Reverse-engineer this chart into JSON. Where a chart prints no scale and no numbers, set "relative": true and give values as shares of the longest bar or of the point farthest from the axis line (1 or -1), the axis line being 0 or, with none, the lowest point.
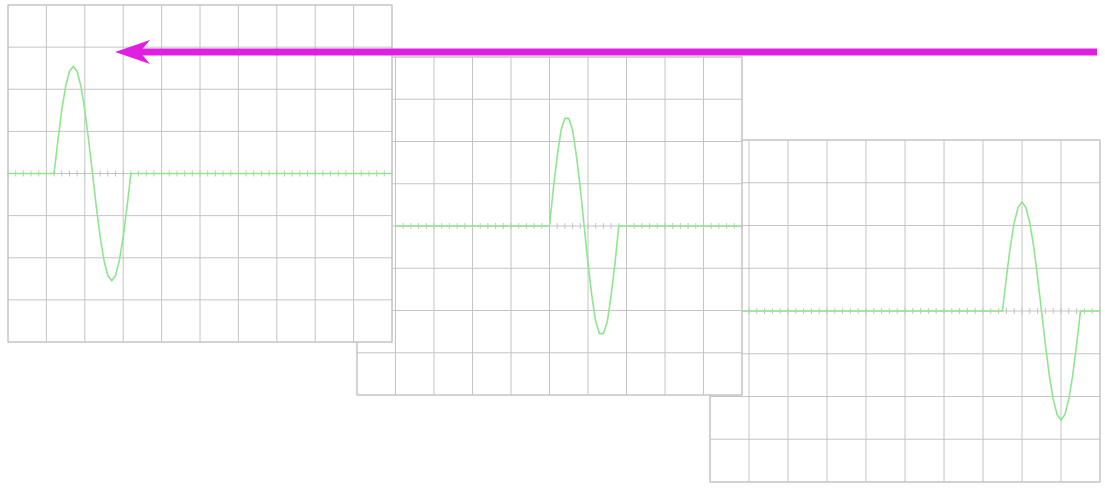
{
  "chart_data": [
    {
      "type": "line",
      "relative": true,
      "grid": true,
      "categories": [
        null,
        null,
        null,
        null,
        null,
        null,
        null,
        null,
        null,
        null,
        null,
        null,
        null,
        null,
        null,
        null,
        null,
        null,
        null,
        null,
        null,
        null,
        null,
        null,
        null,
        null,
        null,
        null,
        null,
        null,
        null,
        null,
        null,
        null,
        null,
        null,
        null,
        null,
        null,
        null,
        null,
        null,
        null,
        null,
        null,
        null,
        null,
        null,
        null,
        null,
        null,
        null,
        null,
        null,
        null,
        null,
        null,
        null,
        null,
        null,
        null,
        null,
        null,
        null,
        null,
        null,
        null,
        null,
        null,
        null,
        null,
        null,
        null,
        null,
        null,
        null,
        null,
        null,
        null,
        null,
        null,
        null,
        null,
        null,
        null,
        null,
        null,
        null,
        null,
        null,
        null,
        null,
        null,
        null,
        null,
        null,
        null,
        null,
        null,
        null,
        null
      ],
      "series": [
        {
          "color": "#8ee68e",
          "values": [
            0,
            0,
            0,
            0,
            0,
            0,
            0,
            0,
            0,
            0,
            0,
            0,
            0,
            0.31,
            0.59,
            0.81,
            0.95,
            1,
            0.95,
            0.81,
            0.59,
            0.31,
            0,
            -0.31,
            -0.59,
            -0.81,
            -0.95,
            -1,
            -0.95,
            -0.81,
            -0.59,
            -0.31,
            0,
            0,
            0,
            0,
            0,
            0,
            0,
            0,
            0,
            0,
            0,
            0,
            0,
            0,
            0,
            0,
            0,
            0,
            0,
            0,
            0,
            0,
            0,
            0,
            0,
            0,
            0,
            0,
            0,
            0,
            0,
            0,
            0,
            0,
            0,
            0,
            0,
            0,
            0,
            0,
            0,
            0,
            0,
            0,
            0,
            0,
            0,
            0,
            0,
            0,
            0,
            0,
            0,
            0,
            0,
            0,
            0,
            0,
            0,
            0,
            0,
            0,
            0,
            0,
            0,
            0,
            0,
            0,
            0
          ]
        }
      ]
    },
    {
      "type": "line",
      "relative": true,
      "grid": true,
      "categories": [
        null,
        null,
        null,
        null,
        null,
        null,
        null,
        null,
        null,
        null,
        null,
        null,
        null,
        null,
        null,
        null,
        null,
        null,
        null,
        null,
        null,
        null,
        null,
        null,
        null,
        null,
        null,
        null,
        null,
        null,
        null,
        null,
        null,
        null,
        null,
        null,
        null,
        null,
        null,
        null,
        null,
        null,
        null,
        null,
        null,
        null,
        null,
        null,
        null,
        null,
        null,
        null,
        null,
        null,
        null,
        null,
        null,
        null,
        null,
        null,
        null,
        null,
        null,
        null,
        null,
        null,
        null,
        null,
        null,
        null,
        null,
        null,
        null,
        null,
        null,
        null,
        null,
        null,
        null,
        null,
        null,
        null,
        null,
        null,
        null,
        null,
        null,
        null,
        null,
        null,
        null,
        null,
        null,
        null,
        null,
        null,
        null,
        null,
        null,
        null,
        null
      ],
      "series": [
        {
          "color": "#8ee68e",
          "values": [
            null,
            null,
            null,
            null,
            null,
            null,
            null,
            null,
            null,
            null,
            0,
            0,
            0,
            0,
            0,
            0,
            0,
            0,
            0,
            0,
            0,
            0,
            0,
            0,
            0,
            0,
            0,
            0,
            0,
            0,
            0,
            0,
            0,
            0,
            0,
            0,
            0,
            0,
            0,
            0,
            0,
            0,
            0,
            0,
            0,
            0,
            0,
            0,
            0,
            0,
            0,
            0.35,
            0.65,
            0.89,
            1,
            1,
            0.89,
            0.65,
            0.35,
            0,
            -0.35,
            -0.65,
            -0.89,
            -1,
            -1,
            -0.89,
            -0.65,
            -0.35,
            0,
            0,
            0,
            0,
            0,
            0,
            0,
            0,
            0,
            0,
            0,
            0,
            0,
            0,
            0,
            0,
            0,
            0,
            0,
            0,
            0,
            0,
            0,
            0,
            0,
            0,
            0,
            0,
            0,
            0,
            0,
            0,
            0
          ]
        }
      ]
    },
    {
      "type": "line",
      "relative": true,
      "grid": true,
      "categories": [
        null,
        null,
        null,
        null,
        null,
        null,
        null,
        null,
        null,
        null,
        null,
        null,
        null,
        null,
        null,
        null,
        null,
        null,
        null,
        null,
        null,
        null,
        null,
        null,
        null,
        null,
        null,
        null,
        null,
        null,
        null,
        null,
        null,
        null,
        null,
        null,
        null,
        null,
        null,
        null,
        null,
        null,
        null,
        null,
        null,
        null,
        null,
        null,
        null,
        null,
        null,
        null,
        null,
        null,
        null,
        null,
        null,
        null,
        null,
        null,
        null,
        null,
        null,
        null,
        null,
        null,
        null,
        null,
        null,
        null,
        null,
        null,
        null,
        null,
        null,
        null,
        null,
        null,
        null,
        null,
        null,
        null,
        null,
        null,
        null,
        null,
        null,
        null,
        null,
        null,
        null,
        null,
        null,
        null,
        null,
        null,
        null,
        null,
        null,
        null,
        null
      ],
      "series": [
        {
          "color": "#8ee68e",
          "values": [
            null,
            null,
            null,
            null,
            null,
            null,
            null,
            null,
            0,
            0,
            0,
            0,
            0,
            0,
            0,
            0,
            0,
            0,
            0,
            0,
            0,
            0,
            0,
            0,
            0,
            0,
            0,
            0,
            0,
            0,
            0,
            0,
            0,
            0,
            0,
            0,
            0,
            0,
            0,
            0,
            0,
            0,
            0,
            0,
            0,
            0,
            0,
            0,
            0,
            0,
            0,
            0,
            0,
            0,
            0,
            0,
            0,
            0,
            0,
            0,
            0,
            0,
            0,
            0,
            0,
            0,
            0,
            0,
            0,
            0,
            0,
            0,
            0,
            0,
            0,
            0,
            0.31,
            0.59,
            0.81,
            0.95,
            1,
            0.95,
            0.81,
            0.59,
            0.31,
            0,
            -0.31,
            -0.59,
            -0.81,
            -0.95,
            -1,
            -0.95,
            -0.81,
            -0.59,
            -0.31,
            0,
            0,
            0,
            0,
            0,
            0
          ]
        }
      ]
    }
  ]
}
